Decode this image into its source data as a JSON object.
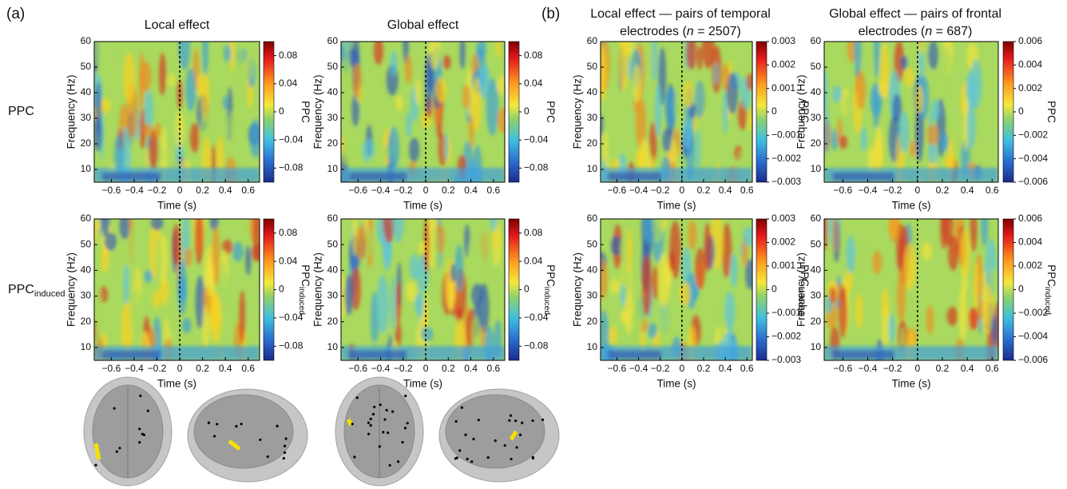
{
  "figure": {
    "panel_labels": [
      "(a)",
      "(b)"
    ],
    "row_labels": [
      {
        "main": "PPC"
      },
      {
        "main": "PPC",
        "sub": "induced"
      }
    ],
    "axes": {
      "ylabel": "Frequency (Hz)",
      "xlabel": "Time (s)",
      "ylim": [
        5,
        60
      ],
      "yticks": [
        10,
        20,
        30,
        40,
        50,
        60
      ]
    },
    "columns": [
      {
        "title": {
          "line1": "Local effect"
        },
        "xlim": [
          -0.75,
          0.7
        ],
        "xticks": [
          {
            "value": -0.6,
            "label": "−0.6"
          },
          {
            "value": -0.4,
            "label": "−0.4"
          },
          {
            "value": -0.2,
            "label": "−0.2"
          },
          0,
          0.2,
          0.4,
          0.6
        ],
        "clim": [
          -0.1,
          0.1
        ],
        "cticks": [
          0.08,
          0.04,
          0,
          {
            "value": -0.04,
            "label": "−0.04"
          },
          {
            "value": -0.08,
            "label": "−0.08"
          }
        ]
      },
      {
        "title": {
          "line1": "Global effect"
        },
        "xlim": [
          -0.75,
          0.7
        ],
        "xticks": [
          {
            "value": -0.6,
            "label": "−0.6"
          },
          {
            "value": -0.4,
            "label": "−0.4"
          },
          {
            "value": -0.2,
            "label": "−0.2"
          },
          0,
          0.2,
          0.4,
          0.6
        ],
        "clim": [
          -0.1,
          0.1
        ],
        "cticks": [
          0.08,
          0.04,
          0,
          {
            "value": -0.04,
            "label": "−0.04"
          },
          {
            "value": -0.08,
            "label": "−0.08"
          }
        ]
      },
      {
        "title": {
          "line1": "Local effect — pairs of temporal",
          "line2_pre": "electrodes (",
          "line2_italic": "n",
          "line2_post": " = 2507)"
        },
        "xlim": [
          -0.75,
          0.65
        ],
        "xticks": [
          {
            "value": -0.6,
            "label": "−0.6"
          },
          {
            "value": -0.4,
            "label": "−0.4"
          },
          {
            "value": -0.2,
            "label": "−0.2"
          },
          0,
          0.2,
          0.4,
          0.6
        ],
        "clim": [
          -0.003,
          0.003
        ],
        "cticks": [
          0.003,
          0.002,
          0.001,
          0,
          {
            "value": -0.001,
            "label": "−0.001"
          },
          {
            "value": -0.002,
            "label": "−0.002"
          },
          {
            "value": -0.003,
            "label": "−0.003"
          }
        ]
      },
      {
        "title": {
          "line1": "Global effect — pairs of frontal",
          "line2_pre": "electrodes (",
          "line2_italic": "n",
          "line2_post": " = 687)"
        },
        "xlim": [
          -0.75,
          0.65
        ],
        "xticks": [
          {
            "value": -0.6,
            "label": "−0.6"
          },
          {
            "value": -0.4,
            "label": "−0.4"
          },
          {
            "value": -0.2,
            "label": "−0.2"
          },
          0,
          0.2,
          0.4,
          0.6
        ],
        "clim": [
          -0.006,
          0.006
        ],
        "cticks": [
          0.006,
          0.004,
          0.002,
          0,
          {
            "value": -0.002,
            "label": "−0.002"
          },
          {
            "value": -0.004,
            "label": "−0.004"
          },
          {
            "value": -0.006,
            "label": "−0.006"
          }
        ]
      }
    ]
  }
}
